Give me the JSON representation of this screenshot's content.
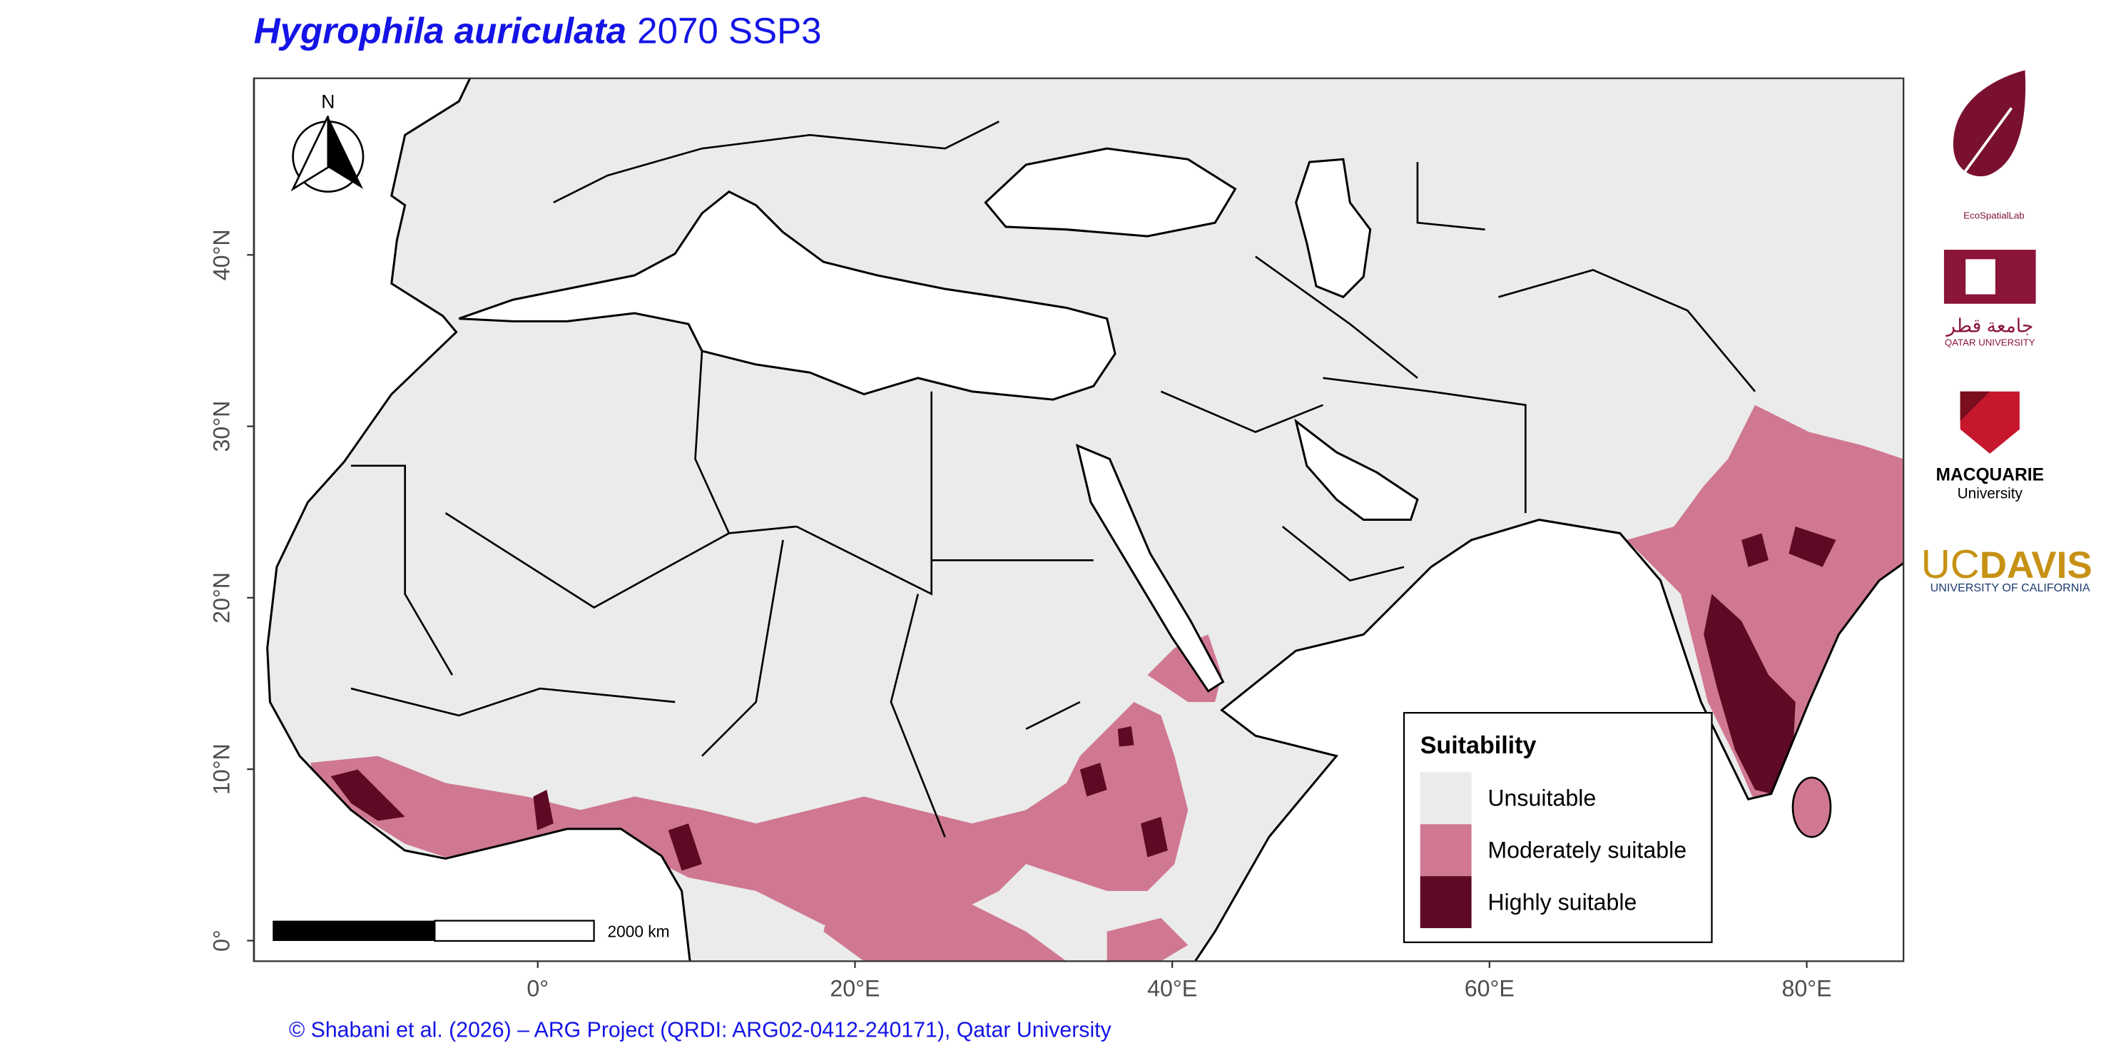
{
  "map": {
    "title_species": "Hygrophila auriculata",
    "title_scenario": "2070 SSP3",
    "xlim": [
      -17.9,
      86.1
    ],
    "ylim": [
      -1.2,
      50.3
    ],
    "xticks": [
      {
        "value": 0,
        "label": "0°"
      },
      {
        "value": 20,
        "label": "20°E"
      },
      {
        "value": 40,
        "label": "40°E"
      },
      {
        "value": 60,
        "label": "60°E"
      },
      {
        "value": 80,
        "label": "80°E"
      }
    ],
    "yticks": [
      {
        "value": 0,
        "label": "0°"
      },
      {
        "value": 10,
        "label": "10°N"
      },
      {
        "value": 20,
        "label": "20°N"
      },
      {
        "value": 30,
        "label": "30°N"
      },
      {
        "value": 40,
        "label": "40°N"
      }
    ],
    "north_label": "N",
    "scale_label": "2000 km",
    "legend": {
      "title": "Suitability",
      "items": [
        {
          "label": "Unsuitable",
          "color": "#ebebeb"
        },
        {
          "label": "Moderately suitable",
          "color": "#d07891"
        },
        {
          "label": "Highly suitable",
          "color": "#5e0a24"
        }
      ]
    },
    "caption": "© Shabani et al. (2026) – ARG Project (QRDI: ARG02-0412-240171), Qatar University",
    "logos": {
      "ecospatial": "EcoSpatialLab",
      "qatar_ar": "جامعة قطر",
      "qatar_en": "QATAR UNIVERSITY",
      "macquarie": "MACQUARIE",
      "macquarie_sub": "University",
      "uc": "UC",
      "davis": "DAVIS",
      "ucal": "UNIVERSITY OF CALIFORNIA"
    }
  }
}
